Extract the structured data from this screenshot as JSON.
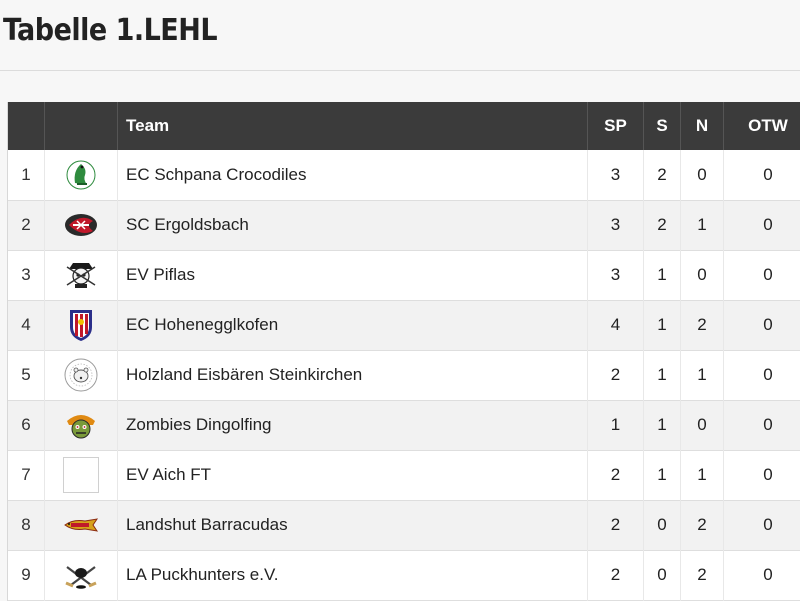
{
  "page": {
    "title": "Tabelle 1.LEHL"
  },
  "table": {
    "headers": {
      "rank": "",
      "logo": "",
      "team": "Team",
      "sp": "SP",
      "s": "S",
      "n": "N",
      "otw": "OTW"
    },
    "rows": [
      {
        "rank": "1",
        "team": "EC Schpana Crocodiles",
        "sp": "3",
        "s": "2",
        "n": "0",
        "otw": "0",
        "logo_icon": "crocodile-logo"
      },
      {
        "rank": "2",
        "team": "SC Ergoldsbach",
        "sp": "3",
        "s": "2",
        "n": "1",
        "otw": "0",
        "logo_icon": "ergoldsbach-logo"
      },
      {
        "rank": "3",
        "team": "EV Piflas",
        "sp": "3",
        "s": "1",
        "n": "0",
        "otw": "0",
        "logo_icon": "pirate-logo"
      },
      {
        "rank": "4",
        "team": "EC Hoheneggl​kofen",
        "sp": "4",
        "s": "1",
        "n": "2",
        "otw": "0",
        "logo_icon": "shield-logo"
      },
      {
        "rank": "5",
        "team": "Holzland Eisbären Steinkirchen",
        "sp": "2",
        "s": "1",
        "n": "1",
        "otw": "0",
        "logo_icon": "polar-bear-logo"
      },
      {
        "rank": "6",
        "team": "Zombies Dingolfing",
        "sp": "1",
        "s": "1",
        "n": "0",
        "otw": "0",
        "logo_icon": "zombie-logo"
      },
      {
        "rank": "7",
        "team": "EV Aich FT",
        "sp": "2",
        "s": "1",
        "n": "1",
        "otw": "0",
        "logo_icon": "empty-logo"
      },
      {
        "rank": "8",
        "team": "Landshut Barracudas",
        "sp": "2",
        "s": "0",
        "n": "2",
        "otw": "0",
        "logo_icon": "barracuda-logo"
      },
      {
        "rank": "9",
        "team": "LA Puckhunters e.V.",
        "sp": "2",
        "s": "0",
        "n": "2",
        "otw": "0",
        "logo_icon": "puckhunters-logo"
      }
    ]
  },
  "colors": {
    "header_bg": "#3b3b3b",
    "row_alt": "#f2f2f2",
    "croc_green": "#2e8b3e",
    "ergold_red": "#c0182a"
  }
}
